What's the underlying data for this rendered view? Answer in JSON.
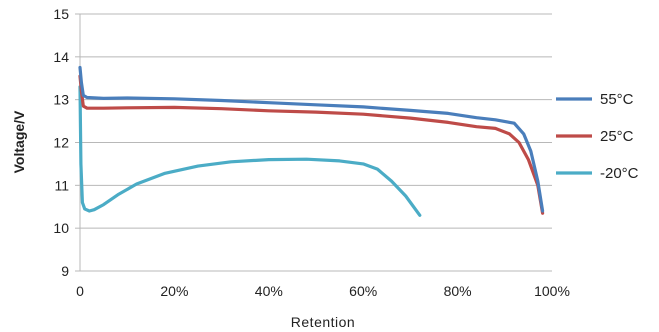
{
  "chart_data": {
    "type": "line",
    "xlabel": "Retention",
    "ylabel": "Voltage/V",
    "xlim": [
      0,
      100
    ],
    "ylim": [
      9,
      15
    ],
    "x_ticks": [
      0,
      20,
      40,
      60,
      80,
      100
    ],
    "x_tick_labels": [
      "0",
      "20%",
      "40%",
      "60%",
      "80%",
      "100%"
    ],
    "y_ticks": [
      9,
      10,
      11,
      12,
      13,
      14,
      15
    ],
    "y_tick_labels": [
      "9",
      "10",
      "11",
      "12",
      "13",
      "14",
      "15"
    ],
    "grid": "horizontal",
    "legend_position": "right",
    "series": [
      {
        "name": "55°C",
        "color": "#4a7ebb",
        "points": [
          [
            0,
            13.75
          ],
          [
            0.3,
            13.4
          ],
          [
            0.7,
            13.1
          ],
          [
            1.5,
            13.05
          ],
          [
            5,
            13.03
          ],
          [
            10,
            13.04
          ],
          [
            20,
            13.02
          ],
          [
            30,
            12.98
          ],
          [
            40,
            12.93
          ],
          [
            50,
            12.88
          ],
          [
            60,
            12.83
          ],
          [
            70,
            12.75
          ],
          [
            78,
            12.68
          ],
          [
            84,
            12.58
          ],
          [
            88,
            12.53
          ],
          [
            92,
            12.45
          ],
          [
            94,
            12.2
          ],
          [
            95.5,
            11.8
          ],
          [
            97,
            11.1
          ],
          [
            98,
            10.4
          ]
        ]
      },
      {
        "name": "25°C",
        "color": "#be4b48",
        "points": [
          [
            0,
            13.55
          ],
          [
            0.3,
            13.2
          ],
          [
            0.7,
            12.85
          ],
          [
            1.5,
            12.8
          ],
          [
            5,
            12.8
          ],
          [
            10,
            12.81
          ],
          [
            20,
            12.82
          ],
          [
            30,
            12.79
          ],
          [
            40,
            12.74
          ],
          [
            50,
            12.71
          ],
          [
            60,
            12.66
          ],
          [
            70,
            12.57
          ],
          [
            78,
            12.47
          ],
          [
            84,
            12.37
          ],
          [
            88,
            12.33
          ],
          [
            91,
            12.2
          ],
          [
            93,
            12.0
          ],
          [
            95,
            11.6
          ],
          [
            97,
            11.0
          ],
          [
            98,
            10.35
          ]
        ]
      },
      {
        "name": "-20°C",
        "color": "#4bacc6",
        "points": [
          [
            0,
            13.3
          ],
          [
            0.2,
            11.5
          ],
          [
            0.5,
            10.6
          ],
          [
            1,
            10.45
          ],
          [
            2,
            10.4
          ],
          [
            3,
            10.43
          ],
          [
            5,
            10.55
          ],
          [
            8,
            10.78
          ],
          [
            12,
            11.03
          ],
          [
            18,
            11.28
          ],
          [
            25,
            11.45
          ],
          [
            32,
            11.55
          ],
          [
            40,
            11.6
          ],
          [
            48,
            11.61
          ],
          [
            55,
            11.57
          ],
          [
            60,
            11.5
          ],
          [
            63,
            11.38
          ],
          [
            66,
            11.1
          ],
          [
            69,
            10.75
          ],
          [
            72,
            10.3
          ]
        ]
      }
    ]
  }
}
